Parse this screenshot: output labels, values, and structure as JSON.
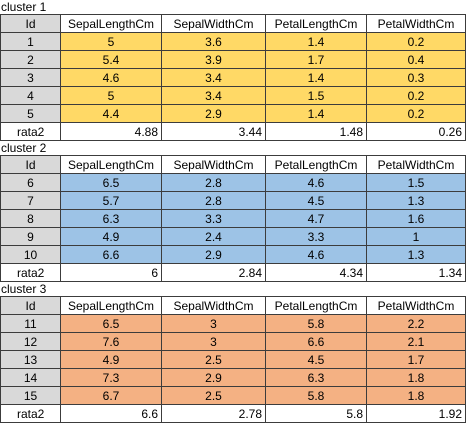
{
  "headers": [
    "Id",
    "SepalLengthCm",
    "SepalWidthCm",
    "PetalLengthCm",
    "PetalWidthCm"
  ],
  "average_label": "rata2",
  "colors": {
    "cluster_1": "#ffd966",
    "cluster_2": "#9dc3e6",
    "cluster_3": "#f4b183",
    "id_column": "#d9d9d9"
  },
  "clusters": [
    {
      "title": "cluster 1",
      "rows": [
        [
          "1",
          "5",
          "3.6",
          "1.4",
          "0.2"
        ],
        [
          "2",
          "5.4",
          "3.9",
          "1.7",
          "0.4"
        ],
        [
          "3",
          "4.6",
          "3.4",
          "1.4",
          "0.3"
        ],
        [
          "4",
          "5",
          "3.4",
          "1.5",
          "0.2"
        ],
        [
          "5",
          "4.4",
          "2.9",
          "1.4",
          "0.2"
        ]
      ],
      "averages": [
        "4.88",
        "3.44",
        "1.48",
        "0.26"
      ]
    },
    {
      "title": "cluster 2",
      "rows": [
        [
          "6",
          "6.5",
          "2.8",
          "4.6",
          "1.5"
        ],
        [
          "7",
          "5.7",
          "2.8",
          "4.5",
          "1.3"
        ],
        [
          "8",
          "6.3",
          "3.3",
          "4.7",
          "1.6"
        ],
        [
          "9",
          "4.9",
          "2.4",
          "3.3",
          "1"
        ],
        [
          "10",
          "6.6",
          "2.9",
          "4.6",
          "1.3"
        ]
      ],
      "averages": [
        "6",
        "2.84",
        "4.34",
        "1.34"
      ]
    },
    {
      "title": "cluster 3",
      "rows": [
        [
          "11",
          "6.5",
          "3",
          "5.8",
          "2.2"
        ],
        [
          "12",
          "7.6",
          "3",
          "6.6",
          "2.1"
        ],
        [
          "13",
          "4.9",
          "2.5",
          "4.5",
          "1.7"
        ],
        [
          "14",
          "7.3",
          "2.9",
          "6.3",
          "1.8"
        ],
        [
          "15",
          "6.7",
          "2.5",
          "5.8",
          "1.8"
        ]
      ],
      "averages": [
        "6.6",
        "2.78",
        "5.8",
        "1.92"
      ]
    }
  ]
}
